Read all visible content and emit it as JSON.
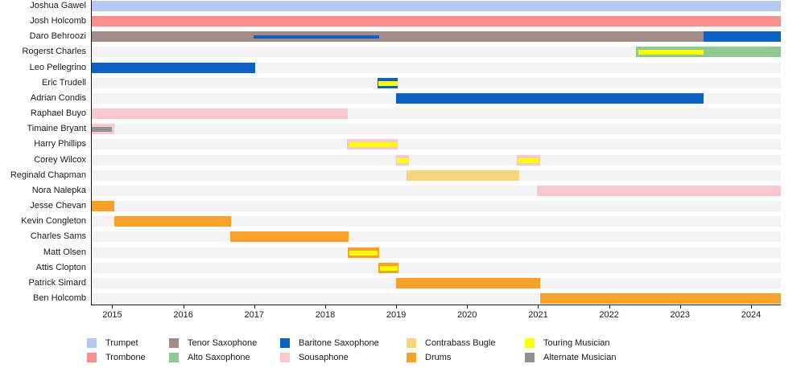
{
  "chart_data": {
    "type": "bar",
    "subtype": "gantt-timeline",
    "title": "",
    "description": "Band members timeline: horizontal bars show each musician's tenure per instrument; thin overlay stripes mark touring/alternate status or a second instrument.",
    "grid": false,
    "legend_position": "bottom",
    "x_axis": {
      "start": 2014.7,
      "end": 2024.42,
      "ticks": [
        2015,
        2016,
        2017,
        2018,
        2019,
        2020,
        2021,
        2022,
        2023,
        2024
      ]
    },
    "colors": {
      "trumpet": "#b5c8f2",
      "trombone": "#f98e8e",
      "tenor_saxophone": "#a38b87",
      "alto_saxophone": "#90c990",
      "baritone_saxophone": "#0b61c4",
      "sousaphone": "#f9c7cc",
      "contrabass_bugle": "#f5d67c",
      "drums": "#faa12b",
      "touring_musician": "#ffff00",
      "alternate_musician": "#919191",
      "track_background": "#f3f3f3",
      "axis": "#1a1a1a"
    },
    "legend": {
      "columns": [
        [
          {
            "label": "Trumpet",
            "color_key": "trumpet"
          },
          {
            "label": "Trombone",
            "color_key": "trombone"
          }
        ],
        [
          {
            "label": "Tenor Saxophone",
            "color_key": "tenor_saxophone"
          },
          {
            "label": "Alto Saxophone",
            "color_key": "alto_saxophone"
          }
        ],
        [
          {
            "label": "Baritone Saxophone",
            "color_key": "baritone_saxophone"
          },
          {
            "label": "Sousaphone",
            "color_key": "sousaphone"
          }
        ],
        [
          {
            "label": "Contrabass Bugle",
            "color_key": "contrabass_bugle"
          },
          {
            "label": "Drums",
            "color_key": "drums"
          }
        ],
        [
          {
            "label": "Touring Musician",
            "color_key": "touring_musician"
          },
          {
            "label": "Alternate Musician",
            "color_key": "alternate_musician"
          }
        ]
      ]
    },
    "members": [
      {
        "name": "Joshua Gawel",
        "segments": [
          {
            "instrument": "Trumpet",
            "color_key": "trumpet",
            "start": 2014.7,
            "end": 2024.42,
            "overlays": []
          }
        ]
      },
      {
        "name": "Josh Holcomb",
        "segments": [
          {
            "instrument": "Trombone",
            "color_key": "trombone",
            "start": 2014.7,
            "end": 2024.42,
            "overlays": []
          }
        ]
      },
      {
        "name": "Daro Behroozi",
        "segments": [
          {
            "instrument": "Tenor Saxophone",
            "color_key": "tenor_saxophone",
            "start": 2014.7,
            "end": 2023.33,
            "overlays": [
              {
                "role": "second_instrument",
                "color_key": "baritone_saxophone",
                "start": 2016.98,
                "end": 2018.75
              }
            ]
          },
          {
            "instrument": "Baritone Saxophone",
            "color_key": "baritone_saxophone",
            "start": 2023.33,
            "end": 2024.42,
            "overlays": []
          }
        ]
      },
      {
        "name": "Rogerst Charles",
        "segments": [
          {
            "instrument": "Alto Saxophone",
            "color_key": "alto_saxophone",
            "start": 2022.38,
            "end": 2024.42,
            "overlays": [
              {
                "role": "touring",
                "color_key": "touring_musician",
                "start": 2022.41,
                "end": 2023.33
              }
            ]
          }
        ]
      },
      {
        "name": "Leo Pellegrino",
        "segments": [
          {
            "instrument": "Baritone Saxophone",
            "color_key": "baritone_saxophone",
            "start": 2014.7,
            "end": 2017.0,
            "overlays": []
          }
        ]
      },
      {
        "name": "Eric Trudell",
        "segments": [
          {
            "instrument": "Baritone Saxophone",
            "color_key": "baritone_saxophone",
            "start": 2018.73,
            "end": 2019.02,
            "overlays": [
              {
                "role": "touring",
                "color_key": "touring_musician",
                "start": 2018.74,
                "end": 2019.01
              }
            ]
          }
        ]
      },
      {
        "name": "Adrian Condis",
        "segments": [
          {
            "instrument": "Baritone Saxophone",
            "color_key": "baritone_saxophone",
            "start": 2018.99,
            "end": 2023.33,
            "overlays": []
          }
        ]
      },
      {
        "name": "Raphael Buyo",
        "segments": [
          {
            "instrument": "Sousaphone",
            "color_key": "sousaphone",
            "start": 2014.7,
            "end": 2018.31,
            "overlays": []
          }
        ]
      },
      {
        "name": "Timaine Bryant",
        "segments": [
          {
            "instrument": "Sousaphone",
            "color_key": "sousaphone",
            "start": 2014.7,
            "end": 2015.02,
            "overlays": [
              {
                "role": "alternate",
                "color_key": "alternate_musician",
                "start": 2014.7,
                "end": 2014.98
              }
            ]
          }
        ]
      },
      {
        "name": "Harry Phillips",
        "segments": [
          {
            "instrument": "Sousaphone",
            "color_key": "sousaphone",
            "start": 2018.3,
            "end": 2019.02,
            "overlays": [
              {
                "role": "touring",
                "color_key": "touring_musician",
                "start": 2018.33,
                "end": 2019.0
              }
            ]
          }
        ]
      },
      {
        "name": "Corey Wilcox",
        "segments": [
          {
            "instrument": "Sousaphone",
            "color_key": "sousaphone",
            "start": 2018.99,
            "end": 2019.17,
            "overlays": [
              {
                "role": "touring",
                "color_key": "touring_musician",
                "start": 2019.0,
                "end": 2019.16
              }
            ]
          },
          {
            "instrument": "Sousaphone",
            "color_key": "sousaphone",
            "start": 2020.7,
            "end": 2021.02,
            "overlays": [
              {
                "role": "touring",
                "color_key": "touring_musician",
                "start": 2020.72,
                "end": 2021.0
              }
            ]
          }
        ]
      },
      {
        "name": "Reginald Chapman",
        "segments": [
          {
            "instrument": "Contrabass Bugle",
            "color_key": "contrabass_bugle",
            "start": 2019.14,
            "end": 2020.73,
            "overlays": []
          }
        ]
      },
      {
        "name": "Nora Nalepka",
        "segments": [
          {
            "instrument": "Sousaphone",
            "color_key": "sousaphone",
            "start": 2020.98,
            "end": 2024.42,
            "overlays": []
          }
        ]
      },
      {
        "name": "Jesse Chevan",
        "segments": [
          {
            "instrument": "Drums",
            "color_key": "drums",
            "start": 2014.7,
            "end": 2015.02,
            "overlays": []
          }
        ]
      },
      {
        "name": "Kevin Congleton",
        "segments": [
          {
            "instrument": "Drums",
            "color_key": "drums",
            "start": 2015.02,
            "end": 2016.67,
            "overlays": []
          }
        ]
      },
      {
        "name": "Charles Sams",
        "segments": [
          {
            "instrument": "Drums",
            "color_key": "drums",
            "start": 2016.65,
            "end": 2018.32,
            "overlays": []
          }
        ]
      },
      {
        "name": "Matt Olsen",
        "segments": [
          {
            "instrument": "Drums",
            "color_key": "drums",
            "start": 2018.31,
            "end": 2018.75,
            "overlays": [
              {
                "role": "touring",
                "color_key": "touring_musician",
                "start": 2018.33,
                "end": 2018.73
              }
            ]
          }
        ]
      },
      {
        "name": "Attis Clopton",
        "segments": [
          {
            "instrument": "Drums",
            "color_key": "drums",
            "start": 2018.74,
            "end": 2019.03,
            "overlays": [
              {
                "role": "touring",
                "color_key": "touring_musician",
                "start": 2018.76,
                "end": 2019.01
              }
            ]
          }
        ]
      },
      {
        "name": "Patrick Simard",
        "segments": [
          {
            "instrument": "Drums",
            "color_key": "drums",
            "start": 2018.99,
            "end": 2021.03,
            "overlays": []
          }
        ]
      },
      {
        "name": "Ben Holcomb",
        "segments": [
          {
            "instrument": "Drums",
            "color_key": "drums",
            "start": 2021.03,
            "end": 2024.42,
            "overlays": []
          }
        ]
      }
    ]
  }
}
